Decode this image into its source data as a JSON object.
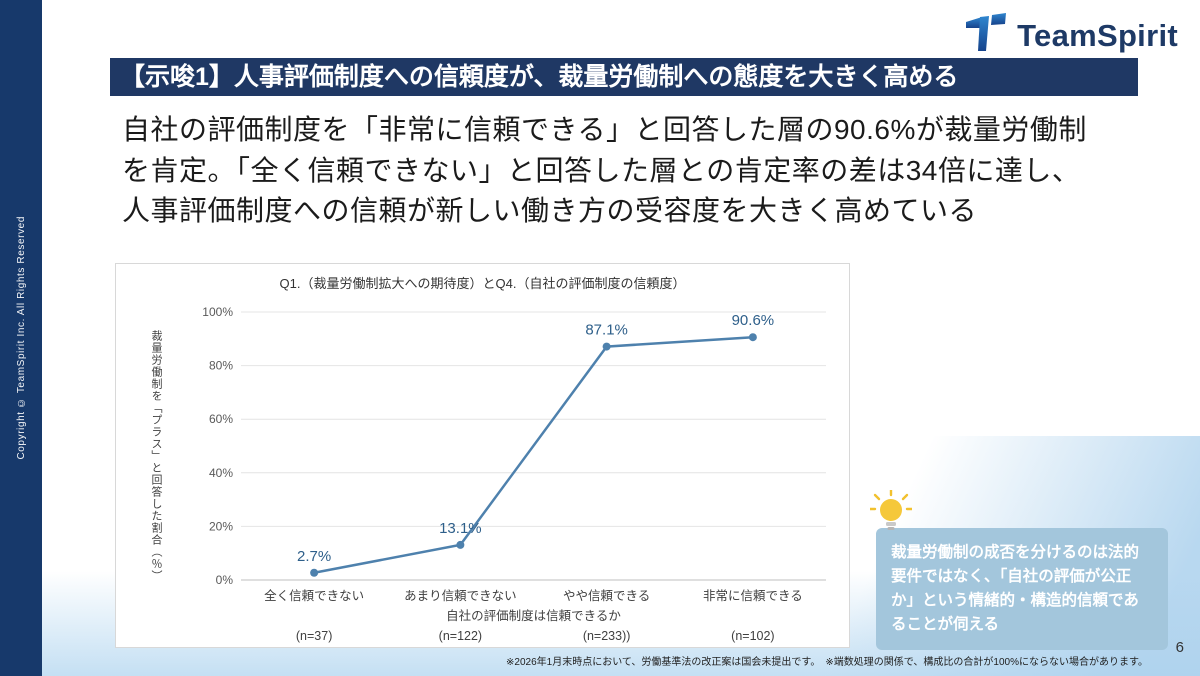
{
  "sidebar": {
    "copyright": "Copyright © TeamSpirit Inc. All Rights Reserved"
  },
  "logo": {
    "text": "TeamSpirit"
  },
  "header": {
    "title": "【示唆1】人事評価制度への信頼度が、裁量労働制への態度を大きく高める"
  },
  "body": {
    "lines": [
      "自社の評価制度を「非常に信頼できる」と回答した層の90.6%が裁量労働制",
      "を肯定。「全く信頼できない」と回答した層との肯定率の差は34倍に達し、",
      "人事評価制度への信頼が新しい働き方の受容度を大きく高めている"
    ]
  },
  "chart_data": {
    "type": "line",
    "title": "Q1.（裁量労働制拡大への期待度）とQ4.（自社の評価制度の信頼度）",
    "categories": [
      "全く信頼できない",
      "あまり信頼できない",
      "やや信頼できる",
      "非常に信頼できる"
    ],
    "values": [
      2.7,
      13.1,
      87.1,
      90.6
    ],
    "value_labels": [
      "2.7%",
      "13.1%",
      "87.1%",
      "90.6%"
    ],
    "n_labels": [
      "(n=37)",
      "(n=122)",
      "(n=233))",
      "(n=102)"
    ],
    "xlabel": "自社の評価制度は信頼できるか",
    "ylabel": "裁量労働制を「プラス」と回答した割合（％）",
    "yticks": [
      "0%",
      "20%",
      "40%",
      "60%",
      "80%",
      "100%"
    ],
    "ylim": [
      0,
      100
    ],
    "grid": true,
    "legend": false,
    "line_color": "#4e81ad",
    "label_color": "#2e5f8a"
  },
  "callout": {
    "text": "裁量労働制の成否を分けるのは法的要件ではなく、「自社の評価が公正か」という情緒的・構造的信頼であることが伺える"
  },
  "footnote": "※2026年1月末時点において、労働基準法の改正案は国会未提出です。　※端数処理の関係で、構成比の合計が100%にならない場合があります。",
  "page_number": "6",
  "colors": {
    "accent_navy": "#1f3864",
    "sidebar_navy": "#17396b",
    "callout_blue": "#a3c6dc",
    "chart_line": "#4e81ad"
  }
}
